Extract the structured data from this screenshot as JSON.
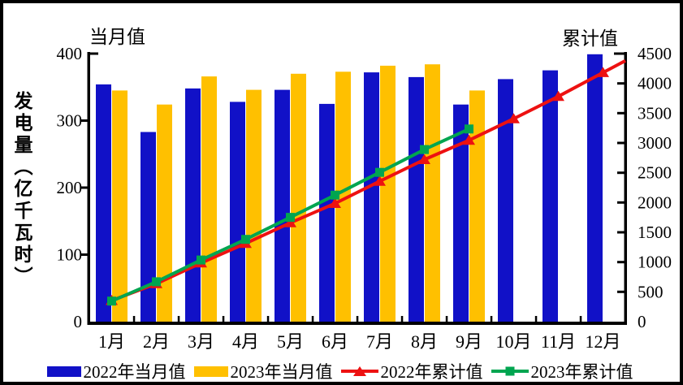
{
  "chart_data": {
    "type": "bar+line",
    "categories": [
      "1月",
      "2月",
      "3月",
      "4月",
      "5月",
      "6月",
      "7月",
      "8月",
      "9月",
      "10月",
      "11月",
      "12月"
    ],
    "left_axis": {
      "corner_label": "当月值",
      "title": "发电量（亿千瓦时）",
      "max": 400,
      "ticks": [
        0,
        100,
        200,
        300,
        400
      ]
    },
    "right_axis": {
      "corner_label": "累计值",
      "max": 4500,
      "ticks": [
        0,
        500,
        1000,
        1500,
        2000,
        2500,
        3000,
        3500,
        4000,
        4500
      ]
    },
    "grid": false,
    "legend_position": "bottom",
    "series": [
      {
        "name": "2022年当月值",
        "type": "bar",
        "axis": "left",
        "color": "#1111C7",
        "values": [
          354,
          283,
          348,
          328,
          346,
          325,
          372,
          365,
          324,
          362,
          375,
          399
        ]
      },
      {
        "name": "2023年当月值",
        "type": "bar",
        "axis": "left",
        "color": "#FFC000",
        "values": [
          345,
          324,
          366,
          346,
          370,
          373,
          382,
          384,
          345,
          null,
          null,
          null
        ]
      },
      {
        "name": "2022年累计值",
        "type": "line",
        "marker": "triangle",
        "axis": "right",
        "color": "#ED1111",
        "extends_to_right_axis": true,
        "values": [
          354,
          637,
          985,
          1313,
          1659,
          1984,
          2356,
          2721,
          3045,
          3407,
          3782,
          4181
        ]
      },
      {
        "name": "2023年累计值",
        "type": "line",
        "marker": "square",
        "axis": "right",
        "color": "#00A550",
        "extends_to_right_axis": false,
        "values": [
          345,
          669,
          1035,
          1381,
          1751,
          2124,
          2506,
          2890,
          3235,
          null,
          null,
          null
        ]
      }
    ]
  }
}
